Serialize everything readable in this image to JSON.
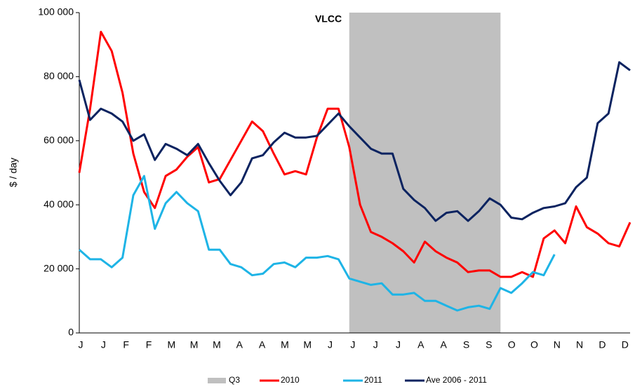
{
  "chart_data": {
    "type": "line",
    "annotation": "VLCC",
    "ylabel": "$ / day",
    "shaded": {
      "name": "Q3",
      "color": "#c0c0c0",
      "x": [
        25,
        39
      ]
    },
    "x": [
      0,
      1,
      2,
      3,
      4,
      5,
      6,
      7,
      8,
      9,
      10,
      11,
      12,
      13,
      14,
      15,
      16,
      17,
      18,
      19,
      20,
      21,
      22,
      23,
      24,
      25,
      26,
      27,
      28,
      29,
      30,
      31,
      32,
      33,
      34,
      35,
      36,
      37,
      38,
      39,
      40,
      41,
      42,
      43,
      44,
      45,
      46,
      47,
      48,
      49,
      50,
      51
    ],
    "series": [
      {
        "name": "2010",
        "color": "#ff0000",
        "values": [
          50000,
          70000,
          94000,
          88000,
          75000,
          56000,
          44000,
          39000,
          49000,
          51000,
          55000,
          58000,
          47000,
          48000,
          54000,
          60000,
          66000,
          63000,
          56000,
          49500,
          50500,
          49500,
          61000,
          70000,
          70000,
          58000,
          40000,
          31500,
          30000,
          28000,
          25500,
          22000,
          28500,
          25500,
          23500,
          22000,
          19000,
          19500,
          19500,
          17500,
          17500,
          19000,
          17500,
          29500,
          32000,
          28000,
          39500,
          33000,
          31000,
          28000,
          27000,
          34500
        ]
      },
      {
        "name": "2011",
        "color": "#1eb4e6",
        "values": [
          26000,
          23000,
          23000,
          20500,
          23500,
          43000,
          49000,
          32500,
          40500,
          44000,
          40500,
          38000,
          26000,
          26000,
          21500,
          20500,
          18000,
          18500,
          21500,
          22000,
          20500,
          23500,
          23500,
          24000,
          23000,
          17000,
          16000,
          15000,
          15500,
          12000,
          12000,
          12500,
          10000,
          10000,
          8500,
          7000,
          8000,
          8500,
          7500,
          14000,
          12500,
          15500,
          19000,
          18000,
          24500,
          null,
          null,
          null,
          null,
          null,
          null,
          null
        ]
      },
      {
        "name": "Ave 2006 - 2011",
        "color": "#0b2360",
        "values": [
          79000,
          66500,
          70000,
          68500,
          66000,
          60000,
          62000,
          54000,
          59000,
          57500,
          55500,
          59000,
          53000,
          47500,
          43000,
          47000,
          54500,
          55500,
          59500,
          62500,
          61000,
          61000,
          61500,
          65000,
          68500,
          64500,
          61000,
          57500,
          56000,
          56000,
          45000,
          41500,
          39000,
          35000,
          37500,
          38000,
          35000,
          38000,
          42000,
          40000,
          36000,
          35500,
          37500,
          39000,
          39500,
          40500,
          45500,
          48500,
          65500,
          68500,
          84500,
          82000
        ]
      }
    ],
    "xlim": [
      0,
      51
    ],
    "xticks": [
      {
        "value": 0,
        "label": "J"
      },
      {
        "value": 2.1,
        "label": "J"
      },
      {
        "value": 4.2,
        "label": "F"
      },
      {
        "value": 6.3,
        "label": "F"
      },
      {
        "value": 8.4,
        "label": "M"
      },
      {
        "value": 10.5,
        "label": "M"
      },
      {
        "value": 12.6,
        "label": "M"
      },
      {
        "value": 14.7,
        "label": "A"
      },
      {
        "value": 16.8,
        "label": "A"
      },
      {
        "value": 18.9,
        "label": "M"
      },
      {
        "value": 21,
        "label": "M"
      },
      {
        "value": 23.1,
        "label": "J"
      },
      {
        "value": 25.2,
        "label": "J"
      },
      {
        "value": 27.3,
        "label": "J"
      },
      {
        "value": 29.4,
        "label": "J"
      },
      {
        "value": 31.5,
        "label": "A"
      },
      {
        "value": 33.6,
        "label": "A"
      },
      {
        "value": 35.7,
        "label": "S"
      },
      {
        "value": 37.8,
        "label": "S"
      },
      {
        "value": 39.9,
        "label": "O"
      },
      {
        "value": 42,
        "label": "O"
      },
      {
        "value": 44.1,
        "label": "N"
      },
      {
        "value": 46.2,
        "label": "N"
      },
      {
        "value": 48.3,
        "label": "D"
      },
      {
        "value": 50.4,
        "label": "D"
      }
    ],
    "ylim": [
      0,
      100000
    ],
    "yticks": [
      0,
      {
        "value": 20000,
        "label": "20 000"
      },
      {
        "value": 40000,
        "label": "40 000"
      },
      {
        "value": 60000,
        "label": "60 000"
      },
      {
        "value": 80000,
        "label": "80 000"
      },
      {
        "value": 100000,
        "label": "100 000"
      }
    ],
    "grid": false
  }
}
